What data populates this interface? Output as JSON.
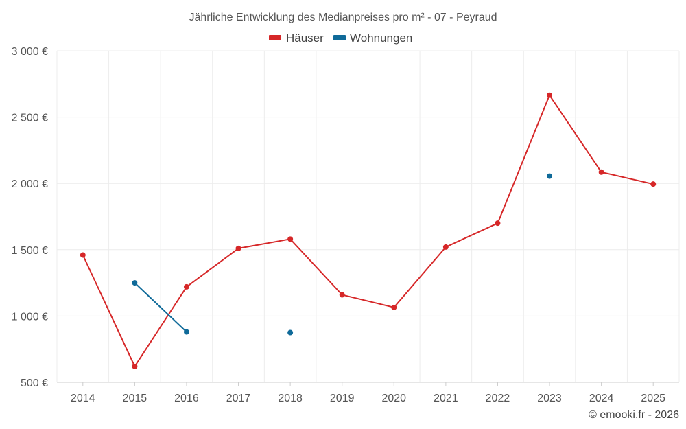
{
  "chart_data": {
    "type": "line",
    "title": "Jährliche Entwicklung des Medianpreises pro m² - 07 - Peyraud",
    "categories": [
      "2014",
      "2015",
      "2016",
      "2017",
      "2018",
      "2019",
      "2020",
      "2021",
      "2022",
      "2023",
      "2024",
      "2025"
    ],
    "series": [
      {
        "name": "Häuser",
        "color": "#d62728",
        "values": [
          1460,
          620,
          1220,
          1510,
          1580,
          1160,
          1065,
          1520,
          1700,
          2665,
          2085,
          1995
        ]
      },
      {
        "name": "Wohnungen",
        "color": "#0f6a99",
        "values": [
          null,
          1250,
          880,
          null,
          875,
          null,
          null,
          null,
          null,
          2055,
          null,
          null
        ]
      }
    ],
    "ylim": [
      500,
      3000
    ],
    "yticks": [
      500,
      1000,
      1500,
      2000,
      2500,
      3000
    ],
    "ytick_labels": [
      "500 €",
      "1 000 €",
      "1 500 €",
      "2 000 €",
      "2 500 €",
      "3 000 €"
    ],
    "xlabel": "",
    "ylabel": "",
    "grid": true,
    "legend_position": "top-center"
  },
  "credit": "© emooki.fr - 2026"
}
